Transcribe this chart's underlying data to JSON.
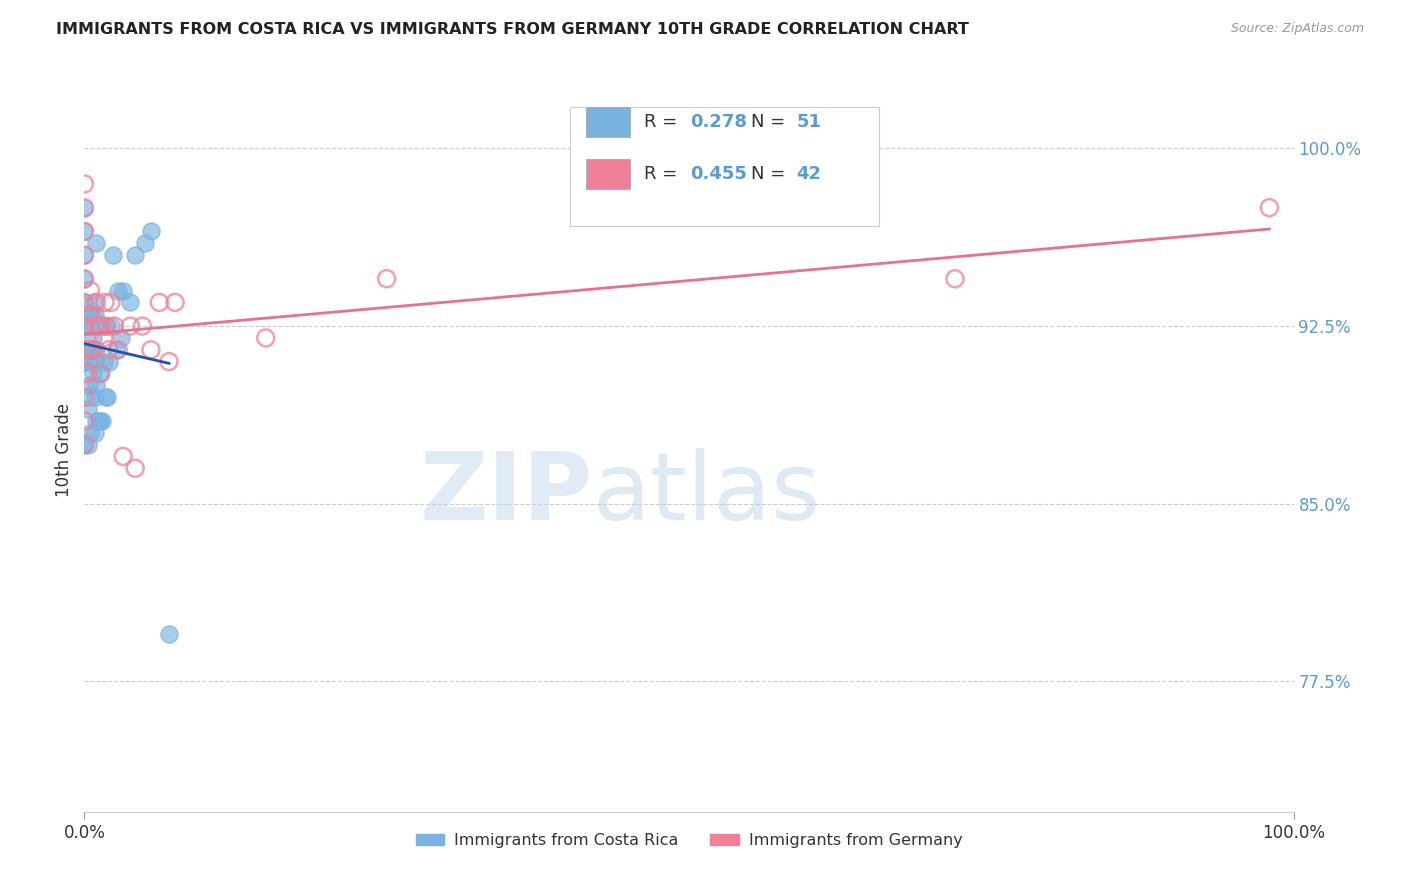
{
  "title": "IMMIGRANTS FROM COSTA RICA VS IMMIGRANTS FROM GERMANY 10TH GRADE CORRELATION CHART",
  "source": "Source: ZipAtlas.com",
  "ylabel_label": "10th Grade",
  "right_yticks": [
    0.775,
    0.85,
    0.925,
    1.0
  ],
  "right_ytick_labels": [
    "77.5%",
    "85.0%",
    "92.5%",
    "100.0%"
  ],
  "legend_entries": [
    {
      "label": "Immigrants from Costa Rica",
      "color": "#a8c8f0",
      "R": 0.278,
      "N": 51
    },
    {
      "label": "Immigrants from Germany",
      "color": "#f0a8b8",
      "R": 0.455,
      "N": 42
    }
  ],
  "costa_rica_color": "#7ab3e0",
  "germany_color": "#f08098",
  "trendline_costa_rica": "#2255aa",
  "trendline_germany": "#e87090",
  "watermark_zip": "ZIP",
  "watermark_atlas": "atlas",
  "background_color": "#ffffff",
  "grid_color": "#cccccc",
  "xlim": [
    0.0,
    1.0
  ],
  "ylim": [
    0.72,
    1.025
  ],
  "costa_rica_x": [
    0.0,
    0.0,
    0.0,
    0.0,
    0.0,
    0.0,
    0.0,
    0.0,
    0.003,
    0.003,
    0.004,
    0.004,
    0.004,
    0.005,
    0.005,
    0.005,
    0.005,
    0.006,
    0.006,
    0.007,
    0.007,
    0.008,
    0.009,
    0.009,
    0.009,
    0.009,
    0.01,
    0.01,
    0.01,
    0.01,
    0.012,
    0.012,
    0.013,
    0.014,
    0.015,
    0.016,
    0.018,
    0.018,
    0.019,
    0.02,
    0.022,
    0.024,
    0.026,
    0.028,
    0.03,
    0.032,
    0.038,
    0.042,
    0.05,
    0.055,
    0.07
  ],
  "costa_rica_y": [
    0.875,
    0.91,
    0.925,
    0.935,
    0.945,
    0.955,
    0.965,
    0.975,
    0.875,
    0.89,
    0.9,
    0.915,
    0.93,
    0.88,
    0.895,
    0.91,
    0.925,
    0.915,
    0.93,
    0.905,
    0.92,
    0.935,
    0.88,
    0.895,
    0.91,
    0.93,
    0.885,
    0.9,
    0.915,
    0.96,
    0.885,
    0.925,
    0.885,
    0.905,
    0.885,
    0.91,
    0.895,
    0.925,
    0.895,
    0.91,
    0.925,
    0.955,
    0.915,
    0.94,
    0.92,
    0.94,
    0.935,
    0.955,
    0.96,
    0.965,
    0.795
  ],
  "germany_x": [
    0.0,
    0.0,
    0.0,
    0.0,
    0.0,
    0.0,
    0.0,
    0.0,
    0.0,
    0.0,
    0.0,
    0.0,
    0.003,
    0.004,
    0.004,
    0.005,
    0.005,
    0.008,
    0.009,
    0.01,
    0.012,
    0.013,
    0.014,
    0.016,
    0.017,
    0.018,
    0.02,
    0.022,
    0.025,
    0.028,
    0.032,
    0.038,
    0.042,
    0.048,
    0.055,
    0.062,
    0.07,
    0.075,
    0.15,
    0.25,
    0.72,
    0.98
  ],
  "germany_y": [
    0.875,
    0.885,
    0.895,
    0.905,
    0.915,
    0.925,
    0.935,
    0.945,
    0.955,
    0.965,
    0.975,
    0.985,
    0.905,
    0.915,
    0.93,
    0.915,
    0.94,
    0.915,
    0.925,
    0.935,
    0.925,
    0.905,
    0.925,
    0.92,
    0.935,
    0.925,
    0.915,
    0.935,
    0.925,
    0.915,
    0.87,
    0.925,
    0.865,
    0.925,
    0.915,
    0.935,
    0.91,
    0.935,
    0.92,
    0.945,
    0.945,
    0.975
  ]
}
